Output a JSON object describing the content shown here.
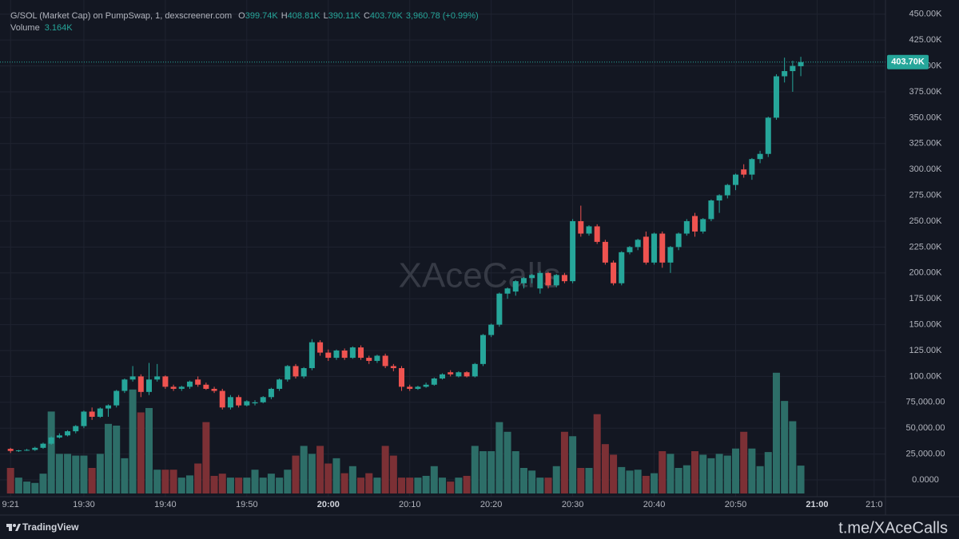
{
  "header": {
    "title": "G/SOL (Market Cap) on PumpSwap, 1, dexscreener.com",
    "ohlc": [
      {
        "key": "O",
        "value": "399.74K"
      },
      {
        "key": "H",
        "value": "408.81K"
      },
      {
        "key": "L",
        "value": "390.11K"
      },
      {
        "key": "C",
        "value": "403.70K"
      }
    ],
    "change": "3,960.78 (+0.99%)",
    "volume_label": "Volume",
    "volume_value": "3.164K"
  },
  "footer": {
    "brand": "TradingView",
    "link": "t.me/XAceCalls"
  },
  "chart_data": {
    "type": "candlestick",
    "watermark": "XAceCalls",
    "last_price_label": "403.70K",
    "up_color": "#26a69a",
    "down_color": "#ef5350",
    "volume_up_color": "#2d6e68",
    "volume_down_color": "#7c3035",
    "grid": true,
    "x": [
      "19:21",
      "19:22",
      "19:23",
      "19:24",
      "19:25",
      "19:26",
      "19:27",
      "19:28",
      "19:29",
      "19:30",
      "19:31",
      "19:32",
      "19:33",
      "19:34",
      "19:35",
      "19:36",
      "19:37",
      "19:38",
      "19:39",
      "19:40",
      "19:41",
      "19:42",
      "19:43",
      "19:44",
      "19:45",
      "19:46",
      "19:47",
      "19:48",
      "19:49",
      "19:50",
      "19:51",
      "19:52",
      "19:53",
      "19:54",
      "19:55",
      "19:56",
      "19:57",
      "19:58",
      "19:59",
      "20:00",
      "20:01",
      "20:02",
      "20:03",
      "20:04",
      "20:05",
      "20:06",
      "20:07",
      "20:08",
      "20:09",
      "20:10",
      "20:11",
      "20:12",
      "20:13",
      "20:14",
      "20:15",
      "20:16",
      "20:17",
      "20:18",
      "20:19",
      "20:20",
      "20:21",
      "20:22",
      "20:23",
      "20:24",
      "20:25",
      "20:26",
      "20:27",
      "20:28",
      "20:29",
      "20:30",
      "20:31",
      "20:32",
      "20:33",
      "20:34",
      "20:35",
      "20:36",
      "20:37",
      "20:38",
      "20:39",
      "20:40",
      "20:41",
      "20:42",
      "20:43",
      "20:44",
      "20:45",
      "20:46",
      "20:47",
      "20:48",
      "20:49",
      "20:50",
      "20:51",
      "20:52",
      "20:53",
      "20:54",
      "20:55",
      "20:56",
      "20:57",
      "20:58"
    ],
    "open": [
      30000,
      28000,
      28500,
      29000,
      31000,
      35000,
      41000,
      43000,
      47000,
      52000,
      66000,
      61000,
      69000,
      72000,
      86000,
      97000,
      100000,
      85000,
      97000,
      100000,
      90000,
      88000,
      90000,
      97000,
      92000,
      88000,
      86000,
      70000,
      80000,
      72000,
      74000,
      75000,
      80000,
      88000,
      97000,
      110000,
      100000,
      108000,
      133000,
      123000,
      118000,
      125000,
      118000,
      128000,
      118000,
      115000,
      120000,
      110000,
      108000,
      90000,
      88000,
      90000,
      92000,
      98000,
      104000,
      100000,
      104000,
      100000,
      112000,
      140000,
      150000,
      180000,
      182000,
      190000,
      195000,
      185000,
      200000,
      188000,
      198000,
      192000,
      250000,
      238000,
      245000,
      230000,
      210000,
      190000,
      220000,
      225000,
      235000,
      210000,
      238000,
      210000,
      225000,
      238000,
      255000,
      240000,
      252000,
      270000,
      275000,
      285000,
      300000,
      295000,
      310000,
      315000,
      350000,
      390000,
      395000,
      399740
    ],
    "high": [
      31000,
      29000,
      30000,
      32000,
      36000,
      42000,
      45000,
      48000,
      53000,
      67000,
      70000,
      70000,
      73000,
      87000,
      98000,
      110000,
      102000,
      113000,
      112000,
      101000,
      92000,
      91000,
      96000,
      100000,
      94000,
      90000,
      88000,
      82000,
      82000,
      77000,
      77000,
      81000,
      89000,
      98000,
      111000,
      112000,
      109000,
      136000,
      135000,
      126000,
      126000,
      127000,
      129000,
      130000,
      120000,
      121000,
      122000,
      112000,
      110000,
      92000,
      91000,
      94000,
      99000,
      103000,
      106000,
      105000,
      105000,
      113000,
      141000,
      151000,
      181000,
      186000,
      193000,
      196000,
      199000,
      202000,
      201000,
      199000,
      200000,
      252000,
      265000,
      246000,
      247000,
      232000,
      212000,
      221000,
      226000,
      233000,
      240000,
      239000,
      240000,
      226000,
      239000,
      252000,
      258000,
      253000,
      271000,
      276000,
      286000,
      296000,
      305000,
      311000,
      318000,
      351000,
      392000,
      408000,
      405000,
      408810
    ],
    "low": [
      26000,
      27000,
      28000,
      28000,
      30000,
      34000,
      40000,
      42000,
      45000,
      50000,
      58000,
      60000,
      61000,
      70000,
      84000,
      95000,
      80000,
      82000,
      95000,
      88000,
      86000,
      86000,
      88000,
      90000,
      87000,
      84000,
      68000,
      68000,
      70000,
      71000,
      72000,
      74000,
      78000,
      86000,
      95000,
      98000,
      98000,
      106000,
      120000,
      115000,
      116000,
      116000,
      117000,
      116000,
      112000,
      113000,
      108000,
      105000,
      86000,
      86000,
      87000,
      89000,
      91000,
      97000,
      100000,
      99000,
      99000,
      99000,
      110000,
      138000,
      148000,
      175000,
      178000,
      185000,
      190000,
      180000,
      185000,
      186000,
      190000,
      190000,
      235000,
      236000,
      228000,
      208000,
      188000,
      188000,
      218000,
      222000,
      208000,
      208000,
      205000,
      200000,
      222000,
      236000,
      235000,
      238000,
      250000,
      258000,
      272000,
      280000,
      292000,
      290000,
      306000,
      312000,
      348000,
      384000,
      375000,
      390110
    ],
    "close": [
      28000,
      28500,
      29000,
      31000,
      35000,
      41000,
      43000,
      47000,
      52000,
      66000,
      61000,
      69000,
      72000,
      86000,
      97000,
      100000,
      85000,
      97000,
      100000,
      90000,
      88000,
      90000,
      95000,
      92000,
      88000,
      86000,
      70000,
      80000,
      72000,
      76000,
      75000,
      80000,
      88000,
      97000,
      110000,
      100000,
      108000,
      133000,
      123000,
      118000,
      125000,
      118000,
      128000,
      118000,
      115000,
      120000,
      110000,
      108000,
      90000,
      88000,
      90000,
      92000,
      98000,
      102000,
      102000,
      104000,
      100000,
      112000,
      140000,
      150000,
      180000,
      185000,
      192000,
      195000,
      198000,
      200000,
      188000,
      198000,
      192000,
      250000,
      238000,
      245000,
      230000,
      210000,
      190000,
      220000,
      225000,
      232000,
      210000,
      238000,
      210000,
      225000,
      238000,
      250000,
      240000,
      252000,
      270000,
      275000,
      285000,
      295000,
      295000,
      310000,
      315000,
      350000,
      390000,
      395000,
      400000,
      403700
    ],
    "volume": [
      2900,
      1800,
      1350,
      1200,
      2250,
      9300,
      4500,
      4500,
      4300,
      4300,
      2900,
      4500,
      7900,
      7700,
      4000,
      11800,
      9200,
      9700,
      2700,
      2700,
      2700,
      1800,
      2050,
      3400,
      8100,
      2000,
      2250,
      1800,
      1800,
      1800,
      2700,
      1800,
      2250,
      1800,
      2700,
      4300,
      5400,
      4500,
      5400,
      3400,
      4000,
      2300,
      3100,
      1800,
      2300,
      1800,
      5400,
      4300,
      1800,
      1800,
      1800,
      2000,
      3100,
      1800,
      1350,
      1800,
      2000,
      5400,
      4800,
      4800,
      8100,
      7000,
      4800,
      2900,
      2600,
      1800,
      1800,
      3100,
      7000,
      6500,
      2900,
      2900,
      9000,
      5600,
      4400,
      3000,
      2600,
      2700,
      2000,
      2300,
      4800,
      4500,
      2900,
      3200,
      4800,
      4400,
      4000,
      4500,
      4300,
      5100,
      7000,
      5100,
      3100,
      4700,
      13700,
      10500,
      8200,
      3164
    ],
    "xlim": [
      "19:20",
      "21:08"
    ],
    "xticks": [
      {
        "value": "19:21",
        "label": "9:21"
      },
      "19:30",
      "19:40",
      "19:50",
      "20:00",
      "20:10",
      "20:20",
      "20:30",
      "20:40",
      "20:50",
      "21:00",
      {
        "value": "21:07",
        "label": "21:0"
      }
    ],
    "ylim": [
      -16200,
      463700
    ],
    "yticks": [
      {
        "value": 450000,
        "label": "450.00K"
      },
      {
        "value": 425000,
        "label": "425.00K"
      },
      {
        "value": 400000,
        "label": "400.00K"
      },
      {
        "value": 375000,
        "label": "375.00K"
      },
      {
        "value": 350000,
        "label": "350.00K"
      },
      {
        "value": 325000,
        "label": "325.00K"
      },
      {
        "value": 300000,
        "label": "300.00K"
      },
      {
        "value": 275000,
        "label": "275.00K"
      },
      {
        "value": 250000,
        "label": "250.00K"
      },
      {
        "value": 225000,
        "label": "225.00K"
      },
      {
        "value": 200000,
        "label": "200.00K"
      },
      {
        "value": 175000,
        "label": "175.00K"
      },
      {
        "value": 150000,
        "label": "150.00K"
      },
      {
        "value": 125000,
        "label": "125.00K"
      },
      {
        "value": 100000,
        "label": "100.00K"
      },
      {
        "value": 75000,
        "label": "75,000.00"
      },
      {
        "value": 50000,
        "label": "50,000.00"
      },
      {
        "value": 25000,
        "label": "25,000.00"
      },
      {
        "value": 0,
        "label": "0.0000"
      }
    ],
    "vlim": [
      0,
      56000
    ]
  }
}
